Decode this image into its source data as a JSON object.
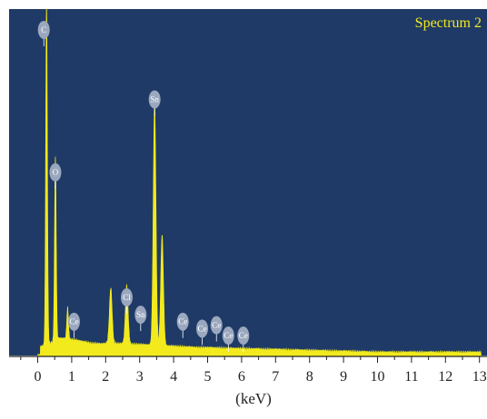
{
  "chart_data": {
    "type": "area",
    "title": "Spectrum 2",
    "xlabel": "(keV)",
    "ylabel": "",
    "xlim": [
      -0.3,
      13.2
    ],
    "ylim": [
      0,
      100
    ],
    "x_ticks": [
      "0",
      "1",
      "2",
      "3",
      "4",
      "5",
      "6",
      "7",
      "8",
      "9",
      "10",
      "11",
      "12",
      "13"
    ],
    "grid": false,
    "colors": {
      "background": "#1f3a66",
      "spectrum": "#f2ea1c",
      "title": "#f2ea1c",
      "peak_marker": "#9aa7be"
    },
    "peaks": [
      {
        "label": "C",
        "x": 0.26,
        "y": 100
      },
      {
        "label": "O",
        "x": 0.52,
        "y": 53
      },
      {
        "label": "Sn",
        "x": 3.44,
        "y": 70
      },
      {
        "label": "Sn",
        "x": 3.66,
        "y": 32
      },
      {
        "label": "Cl",
        "x": 2.62,
        "y": 17
      },
      {
        "label": "Cl",
        "x": 2.15,
        "y": 16
      },
      {
        "label": "Ce",
        "x": 0.88,
        "y": 9
      }
    ],
    "labels": [
      {
        "text": "C",
        "x": 0.18,
        "y": 94
      },
      {
        "text": "O",
        "x": 0.52,
        "y": 53
      },
      {
        "text": "Sn",
        "x": 3.44,
        "y": 74
      },
      {
        "text": "Cl",
        "x": 2.62,
        "y": 17
      },
      {
        "text": "Sn",
        "x": 3.03,
        "y": 12
      },
      {
        "text": "Ce",
        "x": 1.07,
        "y": 10
      },
      {
        "text": "Ce",
        "x": 4.27,
        "y": 10
      },
      {
        "text": "Ce",
        "x": 4.84,
        "y": 8
      },
      {
        "text": "Ce",
        "x": 5.26,
        "y": 9
      },
      {
        "text": "Ce",
        "x": 5.61,
        "y": 6
      },
      {
        "text": "Ce",
        "x": 6.05,
        "y": 6
      }
    ]
  }
}
